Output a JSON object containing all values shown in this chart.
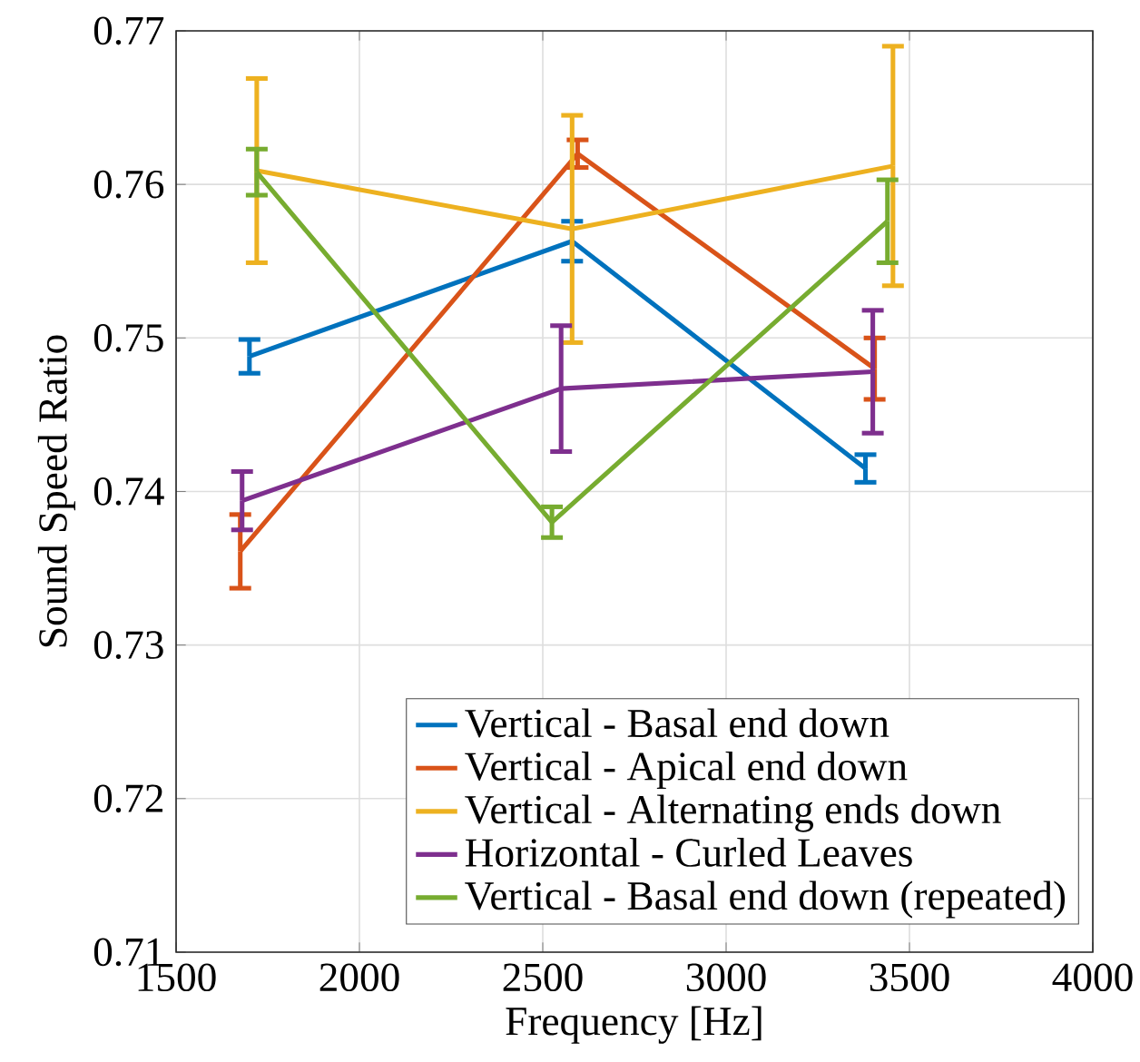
{
  "chart_data": {
    "type": "line",
    "xlabel": "Frequency [Hz]",
    "ylabel": "Sound Speed Ratio",
    "xlim": [
      1500,
      4000
    ],
    "ylim": [
      0.71,
      0.77
    ],
    "xticks": [
      1500,
      2000,
      2500,
      3000,
      3500,
      4000
    ],
    "yticks": [
      0.71,
      0.72,
      0.73,
      0.74,
      0.75,
      0.76,
      0.77
    ],
    "grid": true,
    "legend": "bottom right",
    "marker": "none",
    "line_style": "solid",
    "series": [
      {
        "name": "Vertical - Basal end down",
        "color": "#0072bd",
        "x": [
          1700,
          2580,
          3380
        ],
        "values": [
          0.7488,
          0.7563,
          0.7415
        ],
        "errors": [
          0.0011,
          0.0013,
          0.0009
        ]
      },
      {
        "name": "Vertical - Apical end down",
        "color": "#d95319",
        "x": [
          1675,
          2595,
          3405
        ],
        "values": [
          0.7361,
          0.762,
          0.748
        ],
        "errors": [
          0.0024,
          0.0009,
          0.002
        ]
      },
      {
        "name": "Vertical - Alternating ends down",
        "color": "#edb120",
        "x": [
          1720,
          2580,
          3455
        ],
        "values": [
          0.7609,
          0.7571,
          0.7612
        ],
        "errors": [
          0.006,
          0.0074,
          0.0078
        ]
      },
      {
        "name": "Horizontal - Curled Leaves",
        "color": "#7e2f8e",
        "x": [
          1680,
          2550,
          3400
        ],
        "values": [
          0.7394,
          0.7467,
          0.7478
        ],
        "errors": [
          0.0019,
          0.0041,
          0.004
        ]
      },
      {
        "name": "Vertical - Basal end down (repeated)",
        "color": "#77ac30",
        "x": [
          1720,
          2525,
          3440
        ],
        "values": [
          0.7608,
          0.738,
          0.7576
        ],
        "errors": [
          0.0015,
          0.001,
          0.0027
        ]
      }
    ]
  }
}
